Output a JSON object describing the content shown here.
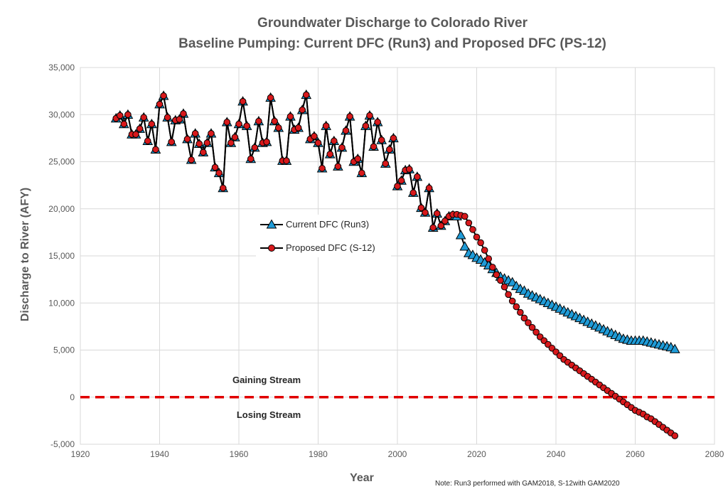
{
  "chart_data": {
    "type": "line",
    "title": "Groundwater Discharge to Colorado River",
    "subtitle": "Baseline Pumping: Current DFC (Run3) and Proposed DFC (PS-12)",
    "xlabel": "Year",
    "ylabel": "Discharge to River (AFY)",
    "xlim": [
      1920,
      2080
    ],
    "ylim": [
      -5000,
      35000
    ],
    "x_ticks": [
      "1920",
      "1940",
      "1960",
      "1980",
      "2000",
      "2020",
      "2040",
      "2060",
      "2080"
    ],
    "y_ticks": [
      "-5,000",
      "0",
      "5,000",
      "10,000",
      "15,000",
      "20,000",
      "25,000",
      "30,000",
      "35,000"
    ],
    "grid": true,
    "legend_position": "middle-left",
    "series": [
      {
        "name": "Current DFC (Run3)",
        "color": "#1f9bd7",
        "marker": "triangle",
        "x": [
          1929,
          1930,
          1931,
          1932,
          1933,
          1934,
          1935,
          1936,
          1937,
          1938,
          1939,
          1940,
          1941,
          1942,
          1943,
          1944,
          1945,
          1946,
          1947,
          1948,
          1949,
          1950,
          1951,
          1952,
          1953,
          1954,
          1955,
          1956,
          1957,
          1958,
          1959,
          1960,
          1961,
          1962,
          1963,
          1964,
          1965,
          1966,
          1967,
          1968,
          1969,
          1970,
          1971,
          1972,
          1973,
          1974,
          1975,
          1976,
          1977,
          1978,
          1979,
          1980,
          1981,
          1982,
          1983,
          1984,
          1985,
          1986,
          1987,
          1988,
          1989,
          1990,
          1991,
          1992,
          1993,
          1994,
          1995,
          1996,
          1997,
          1998,
          1999,
          2000,
          2001,
          2002,
          2003,
          2004,
          2005,
          2006,
          2007,
          2008,
          2009,
          2010,
          2011,
          2012,
          2013,
          2014,
          2015,
          2016,
          2017,
          2018,
          2019,
          2020,
          2021,
          2022,
          2023,
          2024,
          2025,
          2026,
          2027,
          2028,
          2029,
          2030,
          2031,
          2032,
          2033,
          2034,
          2035,
          2036,
          2037,
          2038,
          2039,
          2040,
          2041,
          2042,
          2043,
          2044,
          2045,
          2046,
          2047,
          2048,
          2049,
          2050,
          2051,
          2052,
          2053,
          2054,
          2055,
          2056,
          2057,
          2058,
          2059,
          2060,
          2061,
          2062,
          2063,
          2064,
          2065,
          2066,
          2067,
          2068,
          2069,
          2070
        ],
        "values": [
          29600,
          29900,
          29000,
          30000,
          27900,
          27900,
          28500,
          29700,
          27200,
          29000,
          26300,
          31100,
          32000,
          29700,
          27100,
          29400,
          29500,
          30100,
          27400,
          25200,
          28000,
          26900,
          26000,
          27000,
          28000,
          24400,
          23800,
          22200,
          29200,
          27000,
          27600,
          29000,
          31400,
          28800,
          25300,
          26500,
          29300,
          27000,
          27100,
          31800,
          29300,
          28600,
          25100,
          25100,
          29800,
          28400,
          28600,
          30500,
          32100,
          27400,
          27700,
          27000,
          24300,
          28800,
          25800,
          27200,
          24500,
          26500,
          28300,
          29800,
          25000,
          25300,
          23800,
          28800,
          29900,
          26600,
          29200,
          27300,
          24800,
          26300,
          27500,
          22400,
          23000,
          24100,
          24200,
          21700,
          23400,
          20100,
          19600,
          22200,
          18000,
          19500,
          18200,
          18700,
          19200,
          19300,
          19200,
          17200,
          16000,
          15300,
          15100,
          14800,
          14600,
          14300,
          14000,
          13600,
          13200,
          12800,
          12600,
          12400,
          12200,
          11800,
          11500,
          11300,
          11000,
          10800,
          10600,
          10400,
          10200,
          10000,
          9800,
          9600,
          9400,
          9200,
          9000,
          8800,
          8600,
          8400,
          8200,
          8000,
          7800,
          7600,
          7400,
          7200,
          7000,
          6800,
          6600,
          6400,
          6200,
          6100,
          6000,
          6000,
          6000,
          6000,
          5900,
          5800,
          5700,
          5600,
          5500,
          5400,
          5300,
          5100
        ]
      },
      {
        "name": "Proposed DFC (S-12)",
        "color": "#d7191c",
        "marker": "circle",
        "x": [
          1929,
          1930,
          1931,
          1932,
          1933,
          1934,
          1935,
          1936,
          1937,
          1938,
          1939,
          1940,
          1941,
          1942,
          1943,
          1944,
          1945,
          1946,
          1947,
          1948,
          1949,
          1950,
          1951,
          1952,
          1953,
          1954,
          1955,
          1956,
          1957,
          1958,
          1959,
          1960,
          1961,
          1962,
          1963,
          1964,
          1965,
          1966,
          1967,
          1968,
          1969,
          1970,
          1971,
          1972,
          1973,
          1974,
          1975,
          1976,
          1977,
          1978,
          1979,
          1980,
          1981,
          1982,
          1983,
          1984,
          1985,
          1986,
          1987,
          1988,
          1989,
          1990,
          1991,
          1992,
          1993,
          1994,
          1995,
          1996,
          1997,
          1998,
          1999,
          2000,
          2001,
          2002,
          2003,
          2004,
          2005,
          2006,
          2007,
          2008,
          2009,
          2010,
          2011,
          2012,
          2013,
          2014,
          2015,
          2016,
          2017,
          2018,
          2019,
          2020,
          2021,
          2022,
          2023,
          2024,
          2025,
          2026,
          2027,
          2028,
          2029,
          2030,
          2031,
          2032,
          2033,
          2034,
          2035,
          2036,
          2037,
          2038,
          2039,
          2040,
          2041,
          2042,
          2043,
          2044,
          2045,
          2046,
          2047,
          2048,
          2049,
          2050,
          2051,
          2052,
          2053,
          2054,
          2055,
          2056,
          2057,
          2058,
          2059,
          2060,
          2061,
          2062,
          2063,
          2064,
          2065,
          2066,
          2067,
          2068,
          2069,
          2070
        ],
        "values": [
          29600,
          29900,
          29000,
          30000,
          27900,
          27900,
          28500,
          29700,
          27200,
          29000,
          26300,
          31100,
          32000,
          29700,
          27100,
          29400,
          29500,
          30100,
          27400,
          25200,
          28000,
          26900,
          26000,
          27000,
          28000,
          24400,
          23800,
          22200,
          29200,
          27000,
          27600,
          29000,
          31400,
          28800,
          25300,
          26500,
          29300,
          27000,
          27100,
          31800,
          29300,
          28600,
          25100,
          25100,
          29800,
          28400,
          28600,
          30500,
          32100,
          27400,
          27700,
          27000,
          24300,
          28800,
          25800,
          27200,
          24500,
          26500,
          28300,
          29800,
          25000,
          25300,
          23800,
          28800,
          29900,
          26600,
          29200,
          27300,
          24800,
          26300,
          27500,
          22400,
          23000,
          24100,
          24200,
          21700,
          23400,
          20100,
          19600,
          22200,
          18000,
          19500,
          18200,
          18700,
          19200,
          19400,
          19400,
          19300,
          19200,
          18500,
          17800,
          17000,
          16400,
          15600,
          14700,
          13800,
          13000,
          12400,
          11700,
          10900,
          10200,
          9600,
          9000,
          8400,
          7900,
          7400,
          6900,
          6400,
          6000,
          5600,
          5200,
          4800,
          4400,
          4000,
          3700,
          3400,
          3100,
          2800,
          2500,
          2200,
          1900,
          1600,
          1300,
          1000,
          700,
          400,
          100,
          -200,
          -500,
          -800,
          -1100,
          -1400,
          -1600,
          -1800,
          -2100,
          -2300,
          -2600,
          -2900,
          -3200,
          -3500,
          -3800,
          -4100
        ]
      }
    ],
    "annotations": {
      "gaining": "Gaining Stream",
      "losing": "Losing Stream",
      "note": "Note: Run3 performed with GAM2018, S-12with GAM2020"
    },
    "zero_line_color": "#e00000"
  }
}
